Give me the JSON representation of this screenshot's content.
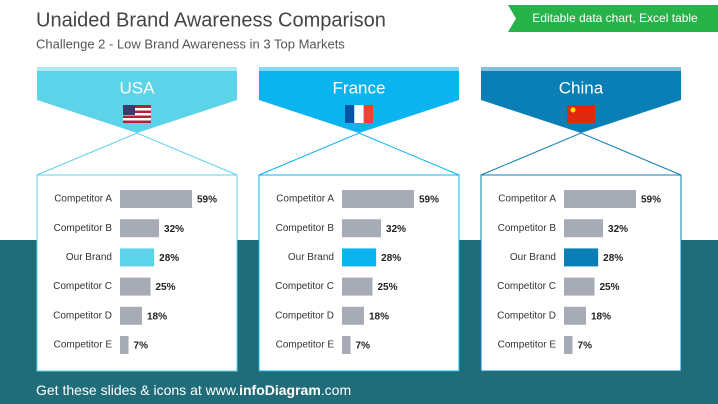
{
  "header": {
    "title": "Unaided Brand Awareness Comparison",
    "subtitle": "Challenge 2 - Low Brand Awareness in 3 Top Markets",
    "badge": "Editable data chart, Excel table"
  },
  "footer": {
    "prefix": "Get these slides & icons at www.",
    "brand": "infoDiagram",
    "suffix": ".com"
  },
  "chart_data": [
    {
      "type": "bar",
      "title": "USA",
      "categories": [
        "Competitor A",
        "Competitor B",
        "Our Brand",
        "Competitor C",
        "Competitor D",
        "Competitor E"
      ],
      "values": [
        59,
        32,
        28,
        25,
        18,
        7
      ],
      "value_labels": [
        "59%",
        "32%",
        "28%",
        "25%",
        "18%",
        "7%"
      ],
      "colors": [
        "#a6abb6",
        "#a6abb6",
        "#5dd3ea",
        "#a6abb6",
        "#a6abb6",
        "#a6abb6"
      ]
    },
    {
      "type": "bar",
      "title": "France",
      "categories": [
        "Competitor A",
        "Competitor B",
        "Our Brand",
        "Competitor C",
        "Competitor D",
        "Competitor E"
      ],
      "values": [
        59,
        32,
        28,
        25,
        18,
        7
      ],
      "value_labels": [
        "59%",
        "32%",
        "28%",
        "25%",
        "18%",
        "7%"
      ],
      "colors": [
        "#a6abb6",
        "#a6abb6",
        "#0bb4ef",
        "#a6abb6",
        "#a6abb6",
        "#a6abb6"
      ]
    },
    {
      "type": "bar",
      "title": "China",
      "categories": [
        "Competitor A",
        "Competitor B",
        "Our Brand",
        "Competitor C",
        "Competitor D",
        "Competitor E"
      ],
      "values": [
        59,
        32,
        28,
        25,
        18,
        7
      ],
      "value_labels": [
        "59%",
        "32%",
        "28%",
        "25%",
        "18%",
        "7%"
      ],
      "colors": [
        "#a6abb6",
        "#a6abb6",
        "#0a7fb6",
        "#a6abb6",
        "#a6abb6",
        "#a6abb6"
      ]
    }
  ]
}
